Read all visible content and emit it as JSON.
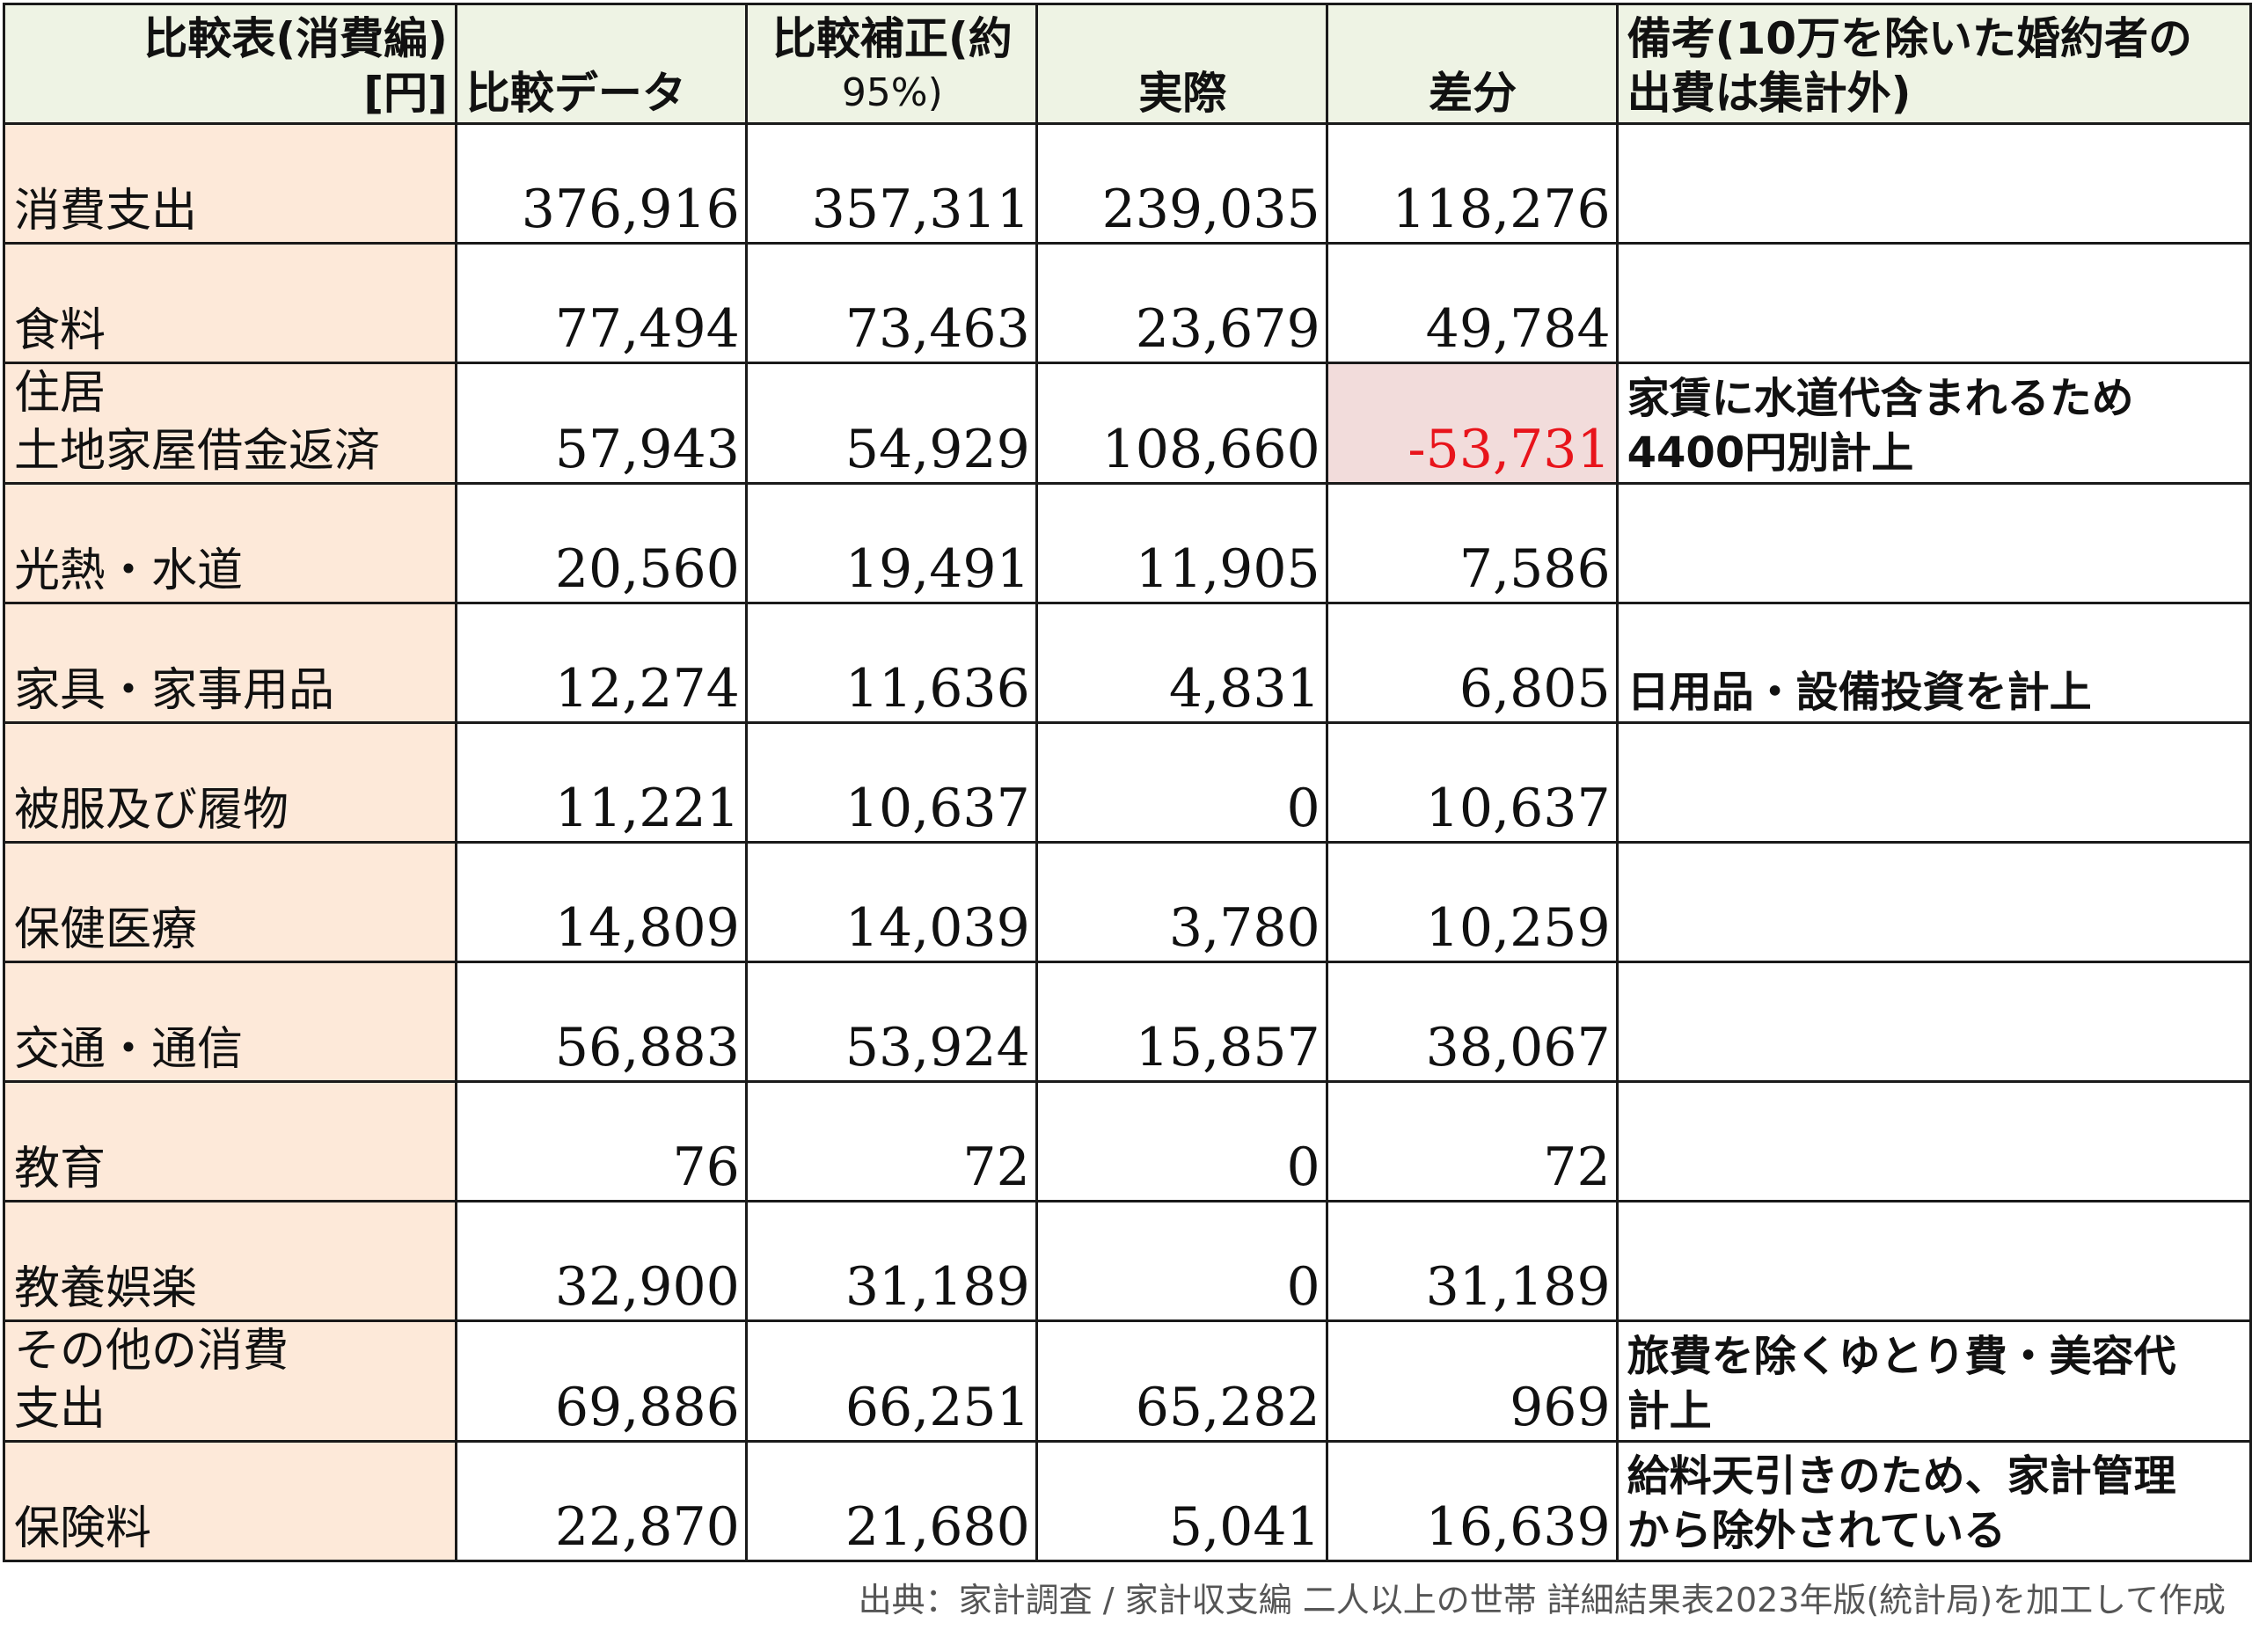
{
  "table": {
    "headers": {
      "label": [
        "比較表(消費編)",
        "[円]"
      ],
      "compare": "比較データ",
      "adjust": [
        "比較補正(約",
        "95%)"
      ],
      "actual": "実際",
      "diff": "差分",
      "note": [
        "備考(10万を除いた婚約者の",
        "出費は集計外)"
      ]
    },
    "rows": [
      {
        "category": [
          "消費支出"
        ],
        "compare": "376,916",
        "adjust": "357,311",
        "actual": "239,035",
        "diff": "118,276",
        "note": []
      },
      {
        "category": [
          "食料"
        ],
        "compare": "77,494",
        "adjust": "73,463",
        "actual": "23,679",
        "diff": "49,784",
        "note": []
      },
      {
        "category": [
          "住居",
          "土地家屋借金返済"
        ],
        "compare": "57,943",
        "adjust": "54,929",
        "actual": "108,660",
        "diff": "-53,731",
        "note": [
          "家賃に水道代含まれるため",
          "4400円別計上"
        ]
      },
      {
        "category": [
          "光熱・水道"
        ],
        "compare": "20,560",
        "adjust": "19,491",
        "actual": "11,905",
        "diff": "7,586",
        "note": []
      },
      {
        "category": [
          "家具・家事用品"
        ],
        "compare": "12,274",
        "adjust": "11,636",
        "actual": "4,831",
        "diff": "6,805",
        "note": [
          "日用品・設備投資を計上"
        ]
      },
      {
        "category": [
          "被服及び履物"
        ],
        "compare": "11,221",
        "adjust": "10,637",
        "actual": "0",
        "diff": "10,637",
        "note": []
      },
      {
        "category": [
          "保健医療"
        ],
        "compare": "14,809",
        "adjust": "14,039",
        "actual": "3,780",
        "diff": "10,259",
        "note": []
      },
      {
        "category": [
          "交通・通信"
        ],
        "compare": "56,883",
        "adjust": "53,924",
        "actual": "15,857",
        "diff": "38,067",
        "note": []
      },
      {
        "category": [
          "教育"
        ],
        "compare": "76",
        "adjust": "72",
        "actual": "0",
        "diff": "72",
        "note": []
      },
      {
        "category": [
          "教養娯楽"
        ],
        "compare": "32,900",
        "adjust": "31,189",
        "actual": "0",
        "diff": "31,189",
        "note": []
      },
      {
        "category": [
          "その他の消費",
          "支出"
        ],
        "compare": "69,886",
        "adjust": "66,251",
        "actual": "65,282",
        "diff": "969",
        "note": [
          "旅費を除くゆとり費・美容代",
          "計上"
        ]
      },
      {
        "category": [
          "保険料"
        ],
        "compare": "22,870",
        "adjust": "21,680",
        "actual": "5,041",
        "diff": "16,639",
        "note": [
          "給料天引きのため、家計管理",
          "から除外されている"
        ]
      }
    ]
  },
  "colors": {
    "header_bg": "#eef3e4",
    "category_bg": "#fde9d9",
    "negative_bg": "#f2dcdb",
    "negative_text": "#e8141b"
  },
  "source": "出典：家計調査 / 家計収支編 二人以上の世帯 詳細結果表2023年版(統計局)を加工して作成"
}
